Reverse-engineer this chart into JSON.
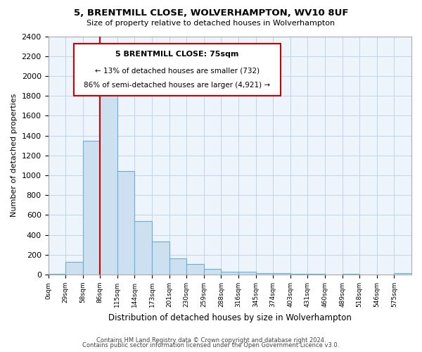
{
  "title": "5, BRENTMILL CLOSE, WOLVERHAMPTON, WV10 8UF",
  "subtitle": "Size of property relative to detached houses in Wolverhampton",
  "xlabel": "Distribution of detached houses by size in Wolverhampton",
  "ylabel": "Number of detached properties",
  "bar_color": "#cce0f0",
  "bar_edge_color": "#6aaed6",
  "vline_color": "#cc0000",
  "vline_x": 3.0,
  "bins": [
    "0sqm",
    "29sqm",
    "58sqm",
    "86sqm",
    "115sqm",
    "144sqm",
    "173sqm",
    "201sqm",
    "230sqm",
    "259sqm",
    "288sqm",
    "316sqm",
    "345sqm",
    "374sqm",
    "403sqm",
    "431sqm",
    "460sqm",
    "489sqm",
    "518sqm",
    "546sqm",
    "575sqm"
  ],
  "values": [
    10,
    125,
    1350,
    1890,
    1040,
    540,
    335,
    165,
    105,
    55,
    30,
    30,
    15,
    15,
    10,
    5,
    0,
    10,
    0,
    0,
    15
  ],
  "ylim": [
    0,
    2400
  ],
  "yticks": [
    0,
    200,
    400,
    600,
    800,
    1000,
    1200,
    1400,
    1600,
    1800,
    2000,
    2200,
    2400
  ],
  "annotation_title": "5 BRENTMILL CLOSE: 75sqm",
  "annotation_line1": "← 13% of detached houses are smaller (732)",
  "annotation_line2": "86% of semi-detached houses are larger (4,921) →",
  "annotation_box_color": "#ffffff",
  "annotation_box_edge_color": "#cc0000",
  "footer_line1": "Contains HM Land Registry data © Crown copyright and database right 2024.",
  "footer_line2": "Contains public sector information licensed under the Open Government Licence v3.0.",
  "background_color": "#ffffff",
  "plot_bg_color": "#eef4fb",
  "grid_color": "#c0d4e8"
}
